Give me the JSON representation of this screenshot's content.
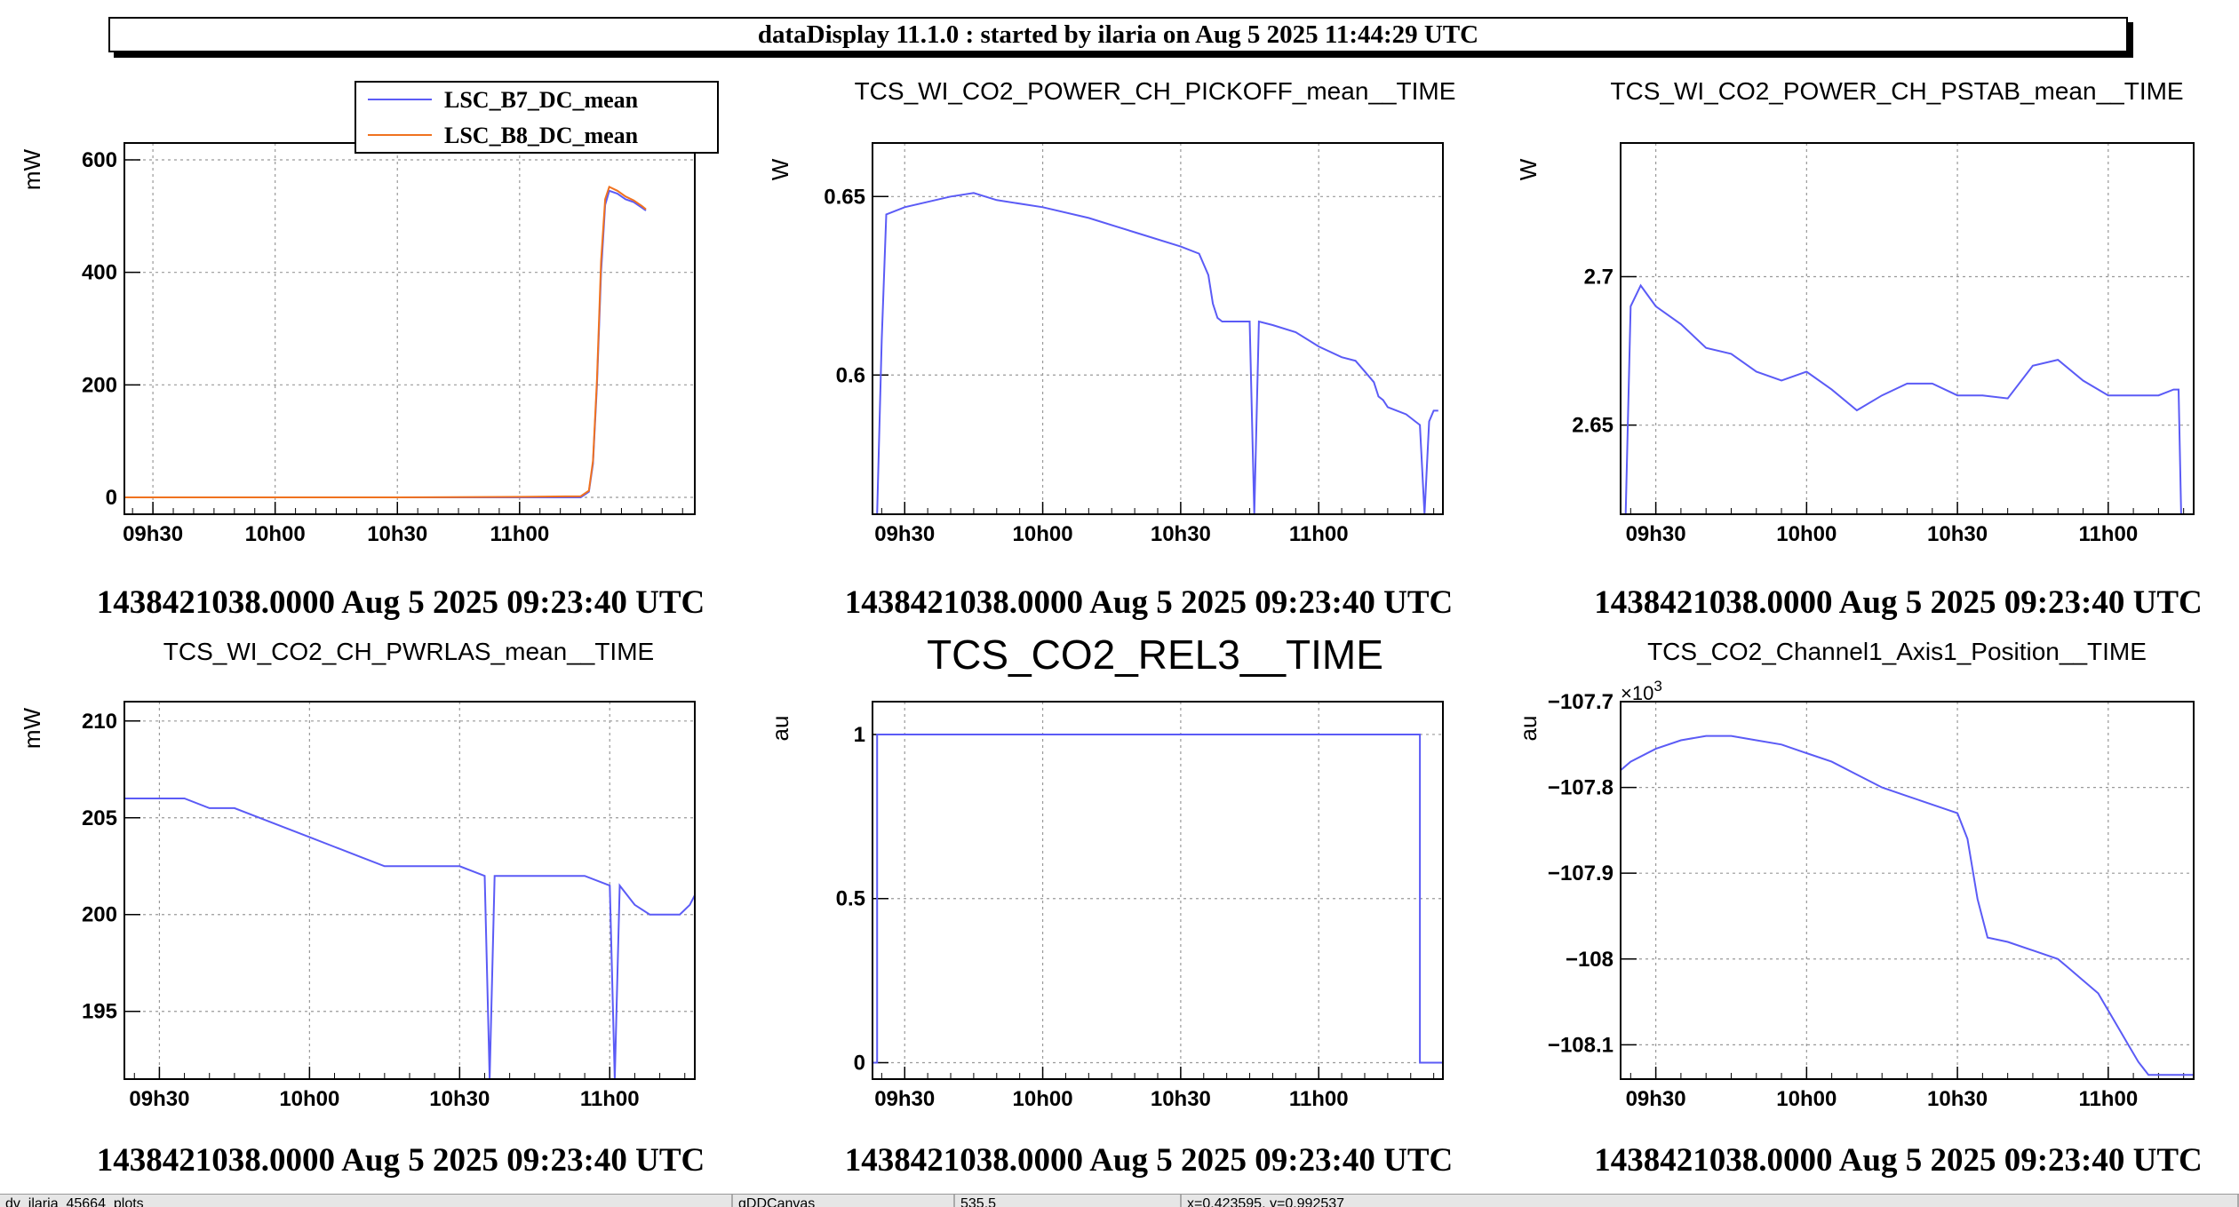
{
  "window_title": "dataDisplay 11.1.0 : started by ilaria on Aug  5 2025 11:44:29 UTC",
  "status_bar": [
    "dv_ilaria_45664_plots",
    "gDDCanvas",
    "535,5",
    "x=0.423595, y=0.992537"
  ],
  "colors": {
    "blue": "#5b5bf6",
    "orange": "#f0721f"
  },
  "chart_data": [
    {
      "type": "line",
      "title": "",
      "ylabel": "mW",
      "time_label": "1438421038.0000 Aug 5 2025 09:23:40 UTC",
      "xlim": [
        "09:23",
        "11:43"
      ],
      "xticks": [
        "09h30",
        "10h00",
        "10h30",
        "11h00"
      ],
      "ylim": [
        -30,
        630
      ],
      "yticks": [
        0,
        200,
        400,
        600
      ],
      "yticklabels": [
        "0",
        "200",
        "400",
        "600"
      ],
      "legend": "top-right",
      "series": [
        {
          "name": "LSC_B7_DC_mean",
          "color": "#5b5bf6",
          "x": [
            "09:23",
            "10:30",
            "11:01",
            "11:15",
            "11:17",
            "11:18",
            "11:19",
            "11:20",
            "11:21",
            "11:22",
            "11:24",
            "11:26",
            "11:28",
            "11:30",
            "11:31"
          ],
          "y": [
            0,
            0,
            0,
            0,
            10,
            60,
            200,
            400,
            520,
            545,
            540,
            530,
            525,
            515,
            510
          ]
        },
        {
          "name": "LSC_B8_DC_mean",
          "color": "#f0721f",
          "x": [
            "09:23",
            "10:30",
            "11:01",
            "11:15",
            "11:17",
            "11:18",
            "11:19",
            "11:20",
            "11:21",
            "11:22",
            "11:24",
            "11:26",
            "11:28",
            "11:30",
            "11:31"
          ],
          "y": [
            0,
            0,
            1,
            2,
            12,
            65,
            210,
            420,
            530,
            552,
            545,
            535,
            528,
            518,
            512
          ]
        }
      ]
    },
    {
      "type": "line",
      "title": "TCS_WI_CO2_POWER_CH_PICKOFF_mean__TIME",
      "ylabel": "W",
      "time_label": "1438421038.0000 Aug 5 2025 09:23:40 UTC",
      "xlim": [
        "09:23",
        "11:27"
      ],
      "xticks": [
        "09h30",
        "10h00",
        "10h30",
        "11h00"
      ],
      "ylim": [
        0.561,
        0.665
      ],
      "yticks": [
        0.6,
        0.65
      ],
      "yticklabels": [
        "0.6",
        "0.65"
      ],
      "series": [
        {
          "name": "",
          "color": "#5b5bf6",
          "x": [
            "09:24",
            "09:25",
            "09:26",
            "09:30",
            "09:40",
            "09:45",
            "09:50",
            "10:00",
            "10:10",
            "10:20",
            "10:30",
            "10:34",
            "10:36",
            "10:37",
            "10:38",
            "10:39",
            "10:40",
            "10:45",
            "10:46",
            "10:47",
            "10:50",
            "10:55",
            "11:00",
            "11:05",
            "11:08",
            "11:10",
            "11:12",
            "11:13",
            "11:14",
            "11:15",
            "11:17",
            "11:19",
            "11:20",
            "11:21",
            "11:22",
            "11:23",
            "11:24",
            "11:25",
            "11:26"
          ],
          "y": [
            0.561,
            0.61,
            0.645,
            0.647,
            0.65,
            0.651,
            0.649,
            0.647,
            0.644,
            0.64,
            0.636,
            0.634,
            0.628,
            0.62,
            0.616,
            0.615,
            0.615,
            0.615,
            0.561,
            0.615,
            0.614,
            0.612,
            0.608,
            0.605,
            0.604,
            0.601,
            0.598,
            0.594,
            0.593,
            0.591,
            0.59,
            0.589,
            0.588,
            0.587,
            0.586,
            0.561,
            0.587,
            0.59,
            0.59
          ]
        }
      ]
    },
    {
      "type": "line",
      "title": "TCS_WI_CO2_POWER_CH_PSTAB_mean__TIME",
      "ylabel": "W",
      "time_label": "1438421038.0000 Aug 5 2025 09:23:40 UTC",
      "xlim": [
        "09:23",
        "11:17"
      ],
      "xticks": [
        "09h30",
        "10h00",
        "10h30",
        "11h00"
      ],
      "ylim": [
        2.62,
        2.745
      ],
      "yticks": [
        2.65,
        2.7
      ],
      "yticklabels": [
        "2.65",
        "2.7"
      ],
      "series": [
        {
          "name": "",
          "color": "#5b5bf6",
          "x": [
            "09:24",
            "09:25",
            "09:27",
            "09:30",
            "09:35",
            "09:40",
            "09:45",
            "09:50",
            "09:55",
            "10:00",
            "10:05",
            "10:10",
            "10:15",
            "10:20",
            "10:25",
            "10:30",
            "10:35",
            "10:40",
            "10:45",
            "10:50",
            "10:55",
            "11:00",
            "11:05",
            "11:10",
            "11:13",
            "11:14",
            "11:14.5",
            "11:15"
          ],
          "y": [
            2.62,
            2.69,
            2.697,
            2.69,
            2.684,
            2.676,
            2.674,
            2.668,
            2.665,
            2.668,
            2.662,
            2.655,
            2.66,
            2.664,
            2.664,
            2.66,
            2.66,
            2.659,
            2.67,
            2.672,
            2.665,
            2.66,
            2.66,
            2.66,
            2.662,
            2.662,
            2.62,
            2.62
          ]
        }
      ]
    },
    {
      "type": "line",
      "title": "TCS_WI_CO2_CH_PWRLAS_mean__TIME",
      "ylabel": "mW",
      "time_label": "1438421038.0000 Aug 5 2025 09:23:40 UTC",
      "xlim": [
        "09:23",
        "11:17"
      ],
      "xticks": [
        "09h30",
        "10h00",
        "10h30",
        "11h00"
      ],
      "ylim": [
        191.5,
        211
      ],
      "yticks": [
        195,
        200,
        205,
        210
      ],
      "yticklabels": [
        "195",
        "200",
        "205",
        "210"
      ],
      "series": [
        {
          "name": "",
          "color": "#5b5bf6",
          "x": [
            "09:23",
            "09:25",
            "09:30",
            "09:35",
            "09:40",
            "09:45",
            "09:50",
            "09:55",
            "10:00",
            "10:05",
            "10:10",
            "10:15",
            "10:20",
            "10:25",
            "10:30",
            "10:35",
            "10:36",
            "10:37",
            "10:40",
            "10:45",
            "10:50",
            "10:55",
            "11:00",
            "11:01",
            "11:02",
            "11:05",
            "11:08",
            "11:10",
            "11:12",
            "11:14",
            "11:16",
            "11:17"
          ],
          "y": [
            206,
            206,
            206,
            206,
            205.5,
            205.5,
            205,
            204.5,
            204,
            203.5,
            203,
            202.5,
            202.5,
            202.5,
            202.5,
            202,
            191.5,
            202,
            202,
            202,
            202,
            202,
            201.5,
            191.5,
            201.5,
            200.5,
            200,
            200,
            200,
            200,
            200.5,
            201
          ]
        }
      ]
    },
    {
      "type": "line",
      "title": "TCS_CO2_REL3__TIME",
      "ylabel": "au",
      "time_label": "1438421038.0000 Aug 5 2025 09:23:40 UTC",
      "xlim": [
        "09:23",
        "11:27"
      ],
      "xticks": [
        "09h30",
        "10h00",
        "10h30",
        "11h00"
      ],
      "ylim": [
        -0.05,
        1.1
      ],
      "yticks": [
        0,
        0.5,
        1
      ],
      "yticklabels": [
        "0",
        "0.5",
        "1"
      ],
      "series": [
        {
          "name": "",
          "color": "#5b5bf6",
          "x": [
            "09:23",
            "09:24",
            "09:24",
            "11:22",
            "11:22",
            "11:27"
          ],
          "y": [
            0,
            0,
            1,
            1,
            0,
            0
          ]
        }
      ]
    },
    {
      "type": "line",
      "title": "TCS_CO2_Channel1_Axis1_Position__TIME",
      "ylabel": "au",
      "time_label": "1438421038.0000 Aug 5 2025 09:23:40 UTC",
      "multiplier": "×10",
      "multiplier_exp": "3",
      "xlim": [
        "09:23",
        "11:17"
      ],
      "xticks": [
        "09h30",
        "10h00",
        "10h30",
        "11h00"
      ],
      "ylim": [
        -108.14,
        -107.7
      ],
      "yticks": [
        -108.1,
        -108,
        -107.9,
        -107.8,
        -107.7
      ],
      "yticklabels": [
        "−108.1",
        "−108",
        "−107.9",
        "−107.8",
        "−107.7"
      ],
      "series": [
        {
          "name": "",
          "color": "#5b5bf6",
          "x": [
            "09:23",
            "09:25",
            "09:30",
            "09:35",
            "09:40",
            "09:45",
            "09:50",
            "09:55",
            "10:00",
            "10:05",
            "10:10",
            "10:15",
            "10:20",
            "10:25",
            "10:30",
            "10:32",
            "10:34",
            "10:36",
            "10:40",
            "10:45",
            "10:50",
            "10:52",
            "10:55",
            "10:58",
            "11:00",
            "11:02",
            "11:04",
            "11:06",
            "11:08",
            "11:12",
            "11:17"
          ],
          "y": [
            -107.78,
            -107.77,
            -107.755,
            -107.745,
            -107.74,
            -107.74,
            -107.745,
            -107.75,
            -107.76,
            -107.77,
            -107.785,
            -107.8,
            -107.81,
            -107.82,
            -107.83,
            -107.86,
            -107.93,
            -107.975,
            -107.98,
            -107.99,
            -108.0,
            -108.01,
            -108.025,
            -108.04,
            -108.06,
            -108.08,
            -108.1,
            -108.12,
            -108.135,
            -108.135,
            -108.135
          ]
        }
      ]
    }
  ]
}
